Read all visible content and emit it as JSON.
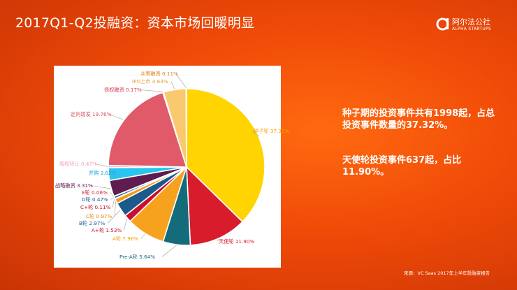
{
  "header": {
    "title": "2017Q1-Q2投融资：资本市场回暖明显",
    "logo_cn": "阿尔法公社",
    "logo_en": "ALPHA STARTUPS"
  },
  "notes": [
    "种子期的投资事件共有1998起，占总投资事件数量的37.32%。",
    "天使轮投资事件637起，占比11.90%。"
  ],
  "footer": {
    "source": "来源：VC Saas 2017年上半年投融资报告"
  },
  "chart_data": {
    "type": "pie",
    "start_angle": "12 o'clock, clockwise",
    "slices": [
      {
        "label": "种子轮",
        "value": 37.32,
        "text": "种子轮 37.32%",
        "color": "#ffd400"
      },
      {
        "label": "天使轮",
        "value": 11.9,
        "text": "天使轮 11.90%",
        "color": "#d81c2c"
      },
      {
        "label": "Pre-A轮",
        "value": 5.64,
        "text": "Pre-A轮 5.64%",
        "color": "#146b7a"
      },
      {
        "label": "A轮",
        "value": 7.96,
        "text": "A轮 7.96%",
        "color": "#f7a21e"
      },
      {
        "label": "A+轮",
        "value": 1.53,
        "text": "A+轮 1.53%",
        "color": "#c8102e"
      },
      {
        "label": "B轮",
        "value": 2.97,
        "text": "B轮 2.97%",
        "color": "#1c5a8c"
      },
      {
        "label": "C轮",
        "value": 0.97,
        "text": "C轮 0.97%",
        "color": "#f59a1c"
      },
      {
        "label": "C+轮",
        "value": 0.11,
        "text": "C+轮 0.11%",
        "color": "#b91428"
      },
      {
        "label": "D轮",
        "value": 0.47,
        "text": "D轮 0.47%",
        "color": "#1f4f8a"
      },
      {
        "label": "E轮",
        "value": 0.06,
        "text": "E轮 0.06%",
        "color": "#d6213a"
      },
      {
        "label": "战略融资",
        "value": 3.31,
        "text": "战略融资 3.31%",
        "color": "#5e1d4e"
      },
      {
        "label": "并购",
        "value": 2.62,
        "text": "并购 2.62%",
        "color": "#29c4f0"
      },
      {
        "label": "股权转让",
        "value": 0.47,
        "text": "股权转让 0.47%",
        "color": "#f5b5c5"
      },
      {
        "label": "定向增发",
        "value": 19.76,
        "text": "定向增发 19.76%",
        "color": "#e05a6a"
      },
      {
        "label": "债权融资",
        "value": 0.17,
        "text": "债权融资 0.17%",
        "color": "#e8455a"
      },
      {
        "label": "IPO上市",
        "value": 4.63,
        "text": "IPO上市 4.63%",
        "color": "#fac86e"
      },
      {
        "label": "众筹融资",
        "value": 0.11,
        "text": "众筹融资 0.11%",
        "color": "#f2a23a"
      }
    ],
    "legend": "none (labels outside slices)"
  }
}
